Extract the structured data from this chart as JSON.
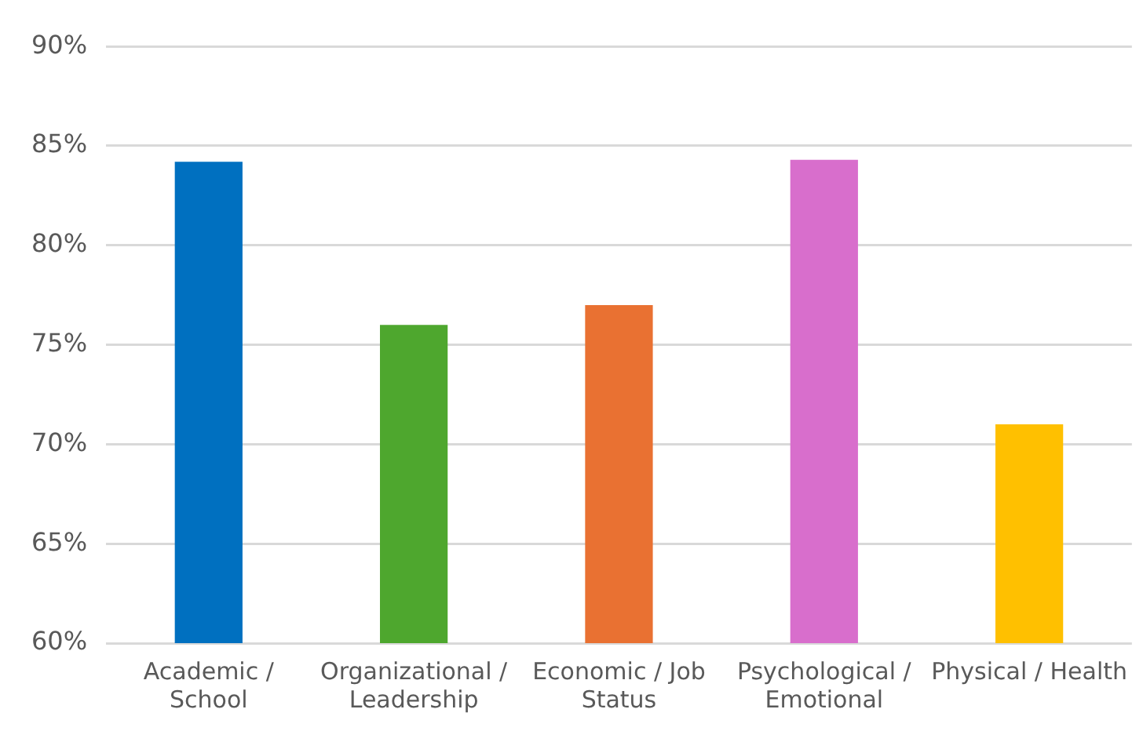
{
  "chart_data": {
    "type": "bar",
    "categories": [
      "Academic / School",
      "Organizational / Leadership",
      "Economic / Job Status",
      "Psychological / Emotional",
      "Physical / Health"
    ],
    "values": [
      84.2,
      76,
      77,
      84.3,
      71
    ],
    "colors": [
      "#0070c0",
      "#4ea72e",
      "#e97132",
      "#d86ecc",
      "#ffc000"
    ],
    "ylim": [
      60,
      90
    ],
    "yticks": [
      {
        "value": 60,
        "label": "60%"
      },
      {
        "value": 65,
        "label": "65%"
      },
      {
        "value": 70,
        "label": "70%"
      },
      {
        "value": 75,
        "label": "75%"
      },
      {
        "value": 80,
        "label": "80%"
      },
      {
        "value": 85,
        "label": "85%"
      },
      {
        "value": 90,
        "label": "90%"
      }
    ],
    "grid": "y",
    "legend": false
  }
}
